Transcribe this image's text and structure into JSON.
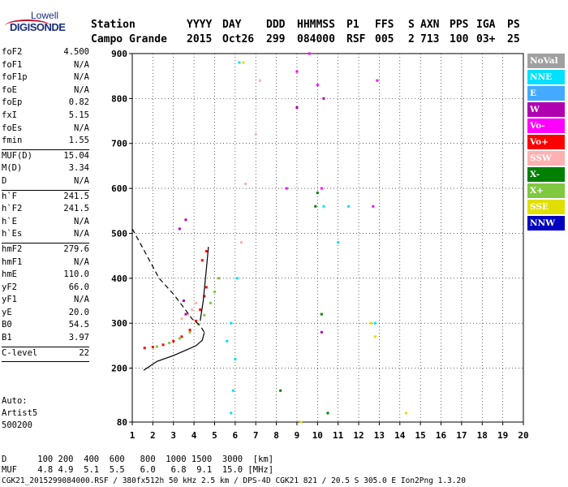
{
  "logo": {
    "line1": "Lowell",
    "line2": "DIGISONDE"
  },
  "header": {
    "labels": [
      "Station",
      "YYYY",
      "DAY",
      "DDD",
      "HHMMSS",
      "P1",
      "FFS",
      "S",
      "AXN",
      "PPS",
      "IGA",
      "PS"
    ],
    "values": [
      "Campo Grande",
      "2015",
      "Oct26",
      "299",
      "084000",
      "RSF",
      "005",
      "2",
      "713",
      "100",
      "03+",
      "25"
    ]
  },
  "params": [
    [
      [
        "foF2",
        "4.500"
      ],
      [
        "foF1",
        "N/A"
      ],
      [
        "foF1p",
        "N/A"
      ],
      [
        "foE",
        "N/A"
      ],
      [
        "foEp",
        "0.82"
      ],
      [
        "fxI",
        "5.15"
      ],
      [
        "foEs",
        "N/A"
      ],
      [
        "fmin",
        "1.55"
      ]
    ],
    [
      [
        "MUF(D)",
        "15.04"
      ],
      [
        "M(D)",
        "3.34"
      ],
      [
        "D",
        "N/A"
      ]
    ],
    [
      [
        "h`F",
        "241.5"
      ],
      [
        "h`F2",
        "241.5"
      ],
      [
        "h`E",
        "N/A"
      ],
      [
        "h`Es",
        "N/A"
      ]
    ],
    [
      [
        "hmF2",
        "279.6"
      ],
      [
        "hmF1",
        "N/A"
      ],
      [
        "hmE",
        "110.0"
      ],
      [
        "yF2",
        "66.0"
      ],
      [
        "yF1",
        "N/A"
      ],
      [
        "yE",
        "20.0"
      ],
      [
        "B0",
        "54.5"
      ],
      [
        "B1",
        "3.97"
      ]
    ],
    [
      [
        "C-level",
        "22"
      ]
    ]
  ],
  "autoscale": {
    "line1": "Auto:",
    "line2": "Artist5",
    "line3": "500200"
  },
  "footer": {
    "d_label": "D",
    "d_values": [
      "100",
      "200",
      "400",
      "600",
      "800",
      "1000",
      "1500",
      "3000",
      "[km]"
    ],
    "muf_label": "MUF",
    "muf_values": [
      "4.8",
      "4.9",
      "5.1",
      "5.5",
      "6.0",
      "6.8",
      "9.1",
      "15.0",
      "[MHz]"
    ],
    "info": "CGK21_2015299084000.RSF / 380fx512h 50 kHz 2.5 km / DPS-4D CGK21 821 / 20.5 S 305.0 E Ion2Png 1.3.20"
  },
  "legend": [
    {
      "label": "NoVal",
      "color": "#a0a0a0"
    },
    {
      "label": "NNE",
      "color": "#00e0ff"
    },
    {
      "label": "E",
      "color": "#44aaff"
    },
    {
      "label": "W",
      "color": "#b000b0"
    },
    {
      "label": "Vo-",
      "color": "#ff00ff"
    },
    {
      "label": "Vo+",
      "color": "#ff0000"
    },
    {
      "label": "SSW",
      "color": "#ffb0b0"
    },
    {
      "label": "X-",
      "color": "#008000"
    },
    {
      "label": "X+",
      "color": "#80c840"
    },
    {
      "label": "SSE",
      "color": "#e0e000"
    },
    {
      "label": "NNW",
      "color": "#0000c0"
    }
  ],
  "chart_data": {
    "type": "scatter",
    "xlim": [
      1,
      20
    ],
    "ylim": [
      80,
      900
    ],
    "x_ticks": [
      1,
      2,
      3,
      4,
      5,
      6,
      7,
      8,
      9,
      10,
      11,
      12,
      13,
      14,
      15,
      16,
      17,
      18,
      19,
      20
    ],
    "y_ticks": [
      80,
      200,
      300,
      400,
      500,
      600,
      700,
      800,
      900
    ],
    "grid": true,
    "series": [
      {
        "name": "Vo+",
        "points": [
          [
            1.6,
            245
          ],
          [
            2.0,
            247
          ],
          [
            2.5,
            252
          ],
          [
            3.0,
            260
          ],
          [
            3.4,
            270
          ],
          [
            3.8,
            285
          ],
          [
            4.1,
            305
          ],
          [
            4.3,
            330
          ],
          [
            4.5,
            360
          ],
          [
            4.6,
            380
          ],
          [
            4.4,
            440
          ],
          [
            4.6,
            460
          ]
        ]
      },
      {
        "name": "X+",
        "points": [
          [
            2.2,
            248
          ],
          [
            2.8,
            256
          ],
          [
            3.3,
            266
          ],
          [
            3.8,
            280
          ],
          [
            4.2,
            298
          ],
          [
            4.5,
            318
          ],
          [
            4.8,
            345
          ],
          [
            5.0,
            370
          ],
          [
            5.2,
            400
          ]
        ]
      },
      {
        "name": "SSW",
        "points": [
          [
            3.4,
            310
          ],
          [
            3.7,
            320
          ],
          [
            3.9,
            330
          ],
          [
            4.1,
            345
          ],
          [
            6.3,
            480
          ],
          [
            6.5,
            610
          ],
          [
            7.0,
            720
          ],
          [
            7.2,
            840
          ]
        ]
      },
      {
        "name": "NNE",
        "points": [
          [
            5.8,
            100
          ],
          [
            5.9,
            150
          ],
          [
            6.0,
            220
          ],
          [
            5.6,
            260
          ],
          [
            5.8,
            300
          ],
          [
            6.1,
            400
          ],
          [
            6.2,
            880
          ],
          [
            10.3,
            560
          ],
          [
            11.0,
            480
          ],
          [
            11.5,
            560
          ],
          [
            12.8,
            300
          ]
        ]
      },
      {
        "name": "W",
        "points": [
          [
            3.6,
            320
          ],
          [
            3.5,
            350
          ],
          [
            3.3,
            510
          ],
          [
            3.6,
            530
          ],
          [
            9.0,
            780
          ],
          [
            10.3,
            800
          ],
          [
            10.2,
            280
          ]
        ]
      },
      {
        "name": "Vo-",
        "points": [
          [
            8.5,
            600
          ],
          [
            9.0,
            860
          ],
          [
            9.6,
            900
          ],
          [
            10.0,
            830
          ],
          [
            10.2,
            600
          ],
          [
            12.7,
            560
          ],
          [
            12.9,
            840
          ]
        ]
      },
      {
        "name": "X-",
        "points": [
          [
            8.2,
            150
          ],
          [
            9.9,
            560
          ],
          [
            10.0,
            590
          ],
          [
            10.2,
            320
          ],
          [
            10.5,
            100
          ]
        ]
      },
      {
        "name": "SSE",
        "points": [
          [
            12.6,
            300
          ],
          [
            12.8,
            270
          ],
          [
            14.3,
            100
          ],
          [
            6.4,
            880
          ],
          [
            9.2,
            80
          ]
        ]
      }
    ],
    "curves": [
      {
        "name": "profile",
        "style": "solid",
        "points": [
          [
            1.55,
            195
          ],
          [
            2.2,
            215
          ],
          [
            3.0,
            228
          ],
          [
            3.6,
            240
          ],
          [
            4.1,
            250
          ],
          [
            4.4,
            262
          ],
          [
            4.5,
            279.6
          ]
        ]
      },
      {
        "name": "true-height-upper",
        "style": "solid",
        "points": [
          [
            4.3,
            305
          ],
          [
            4.45,
            350
          ],
          [
            4.6,
            420
          ],
          [
            4.7,
            470
          ]
        ]
      },
      {
        "name": "extrapolated",
        "style": "dashed",
        "points": [
          [
            1.0,
            510
          ],
          [
            1.6,
            460
          ],
          [
            2.3,
            400
          ],
          [
            3.0,
            365
          ],
          [
            3.5,
            335
          ],
          [
            3.9,
            310
          ],
          [
            4.3,
            295
          ],
          [
            4.5,
            279.6
          ]
        ]
      }
    ]
  }
}
